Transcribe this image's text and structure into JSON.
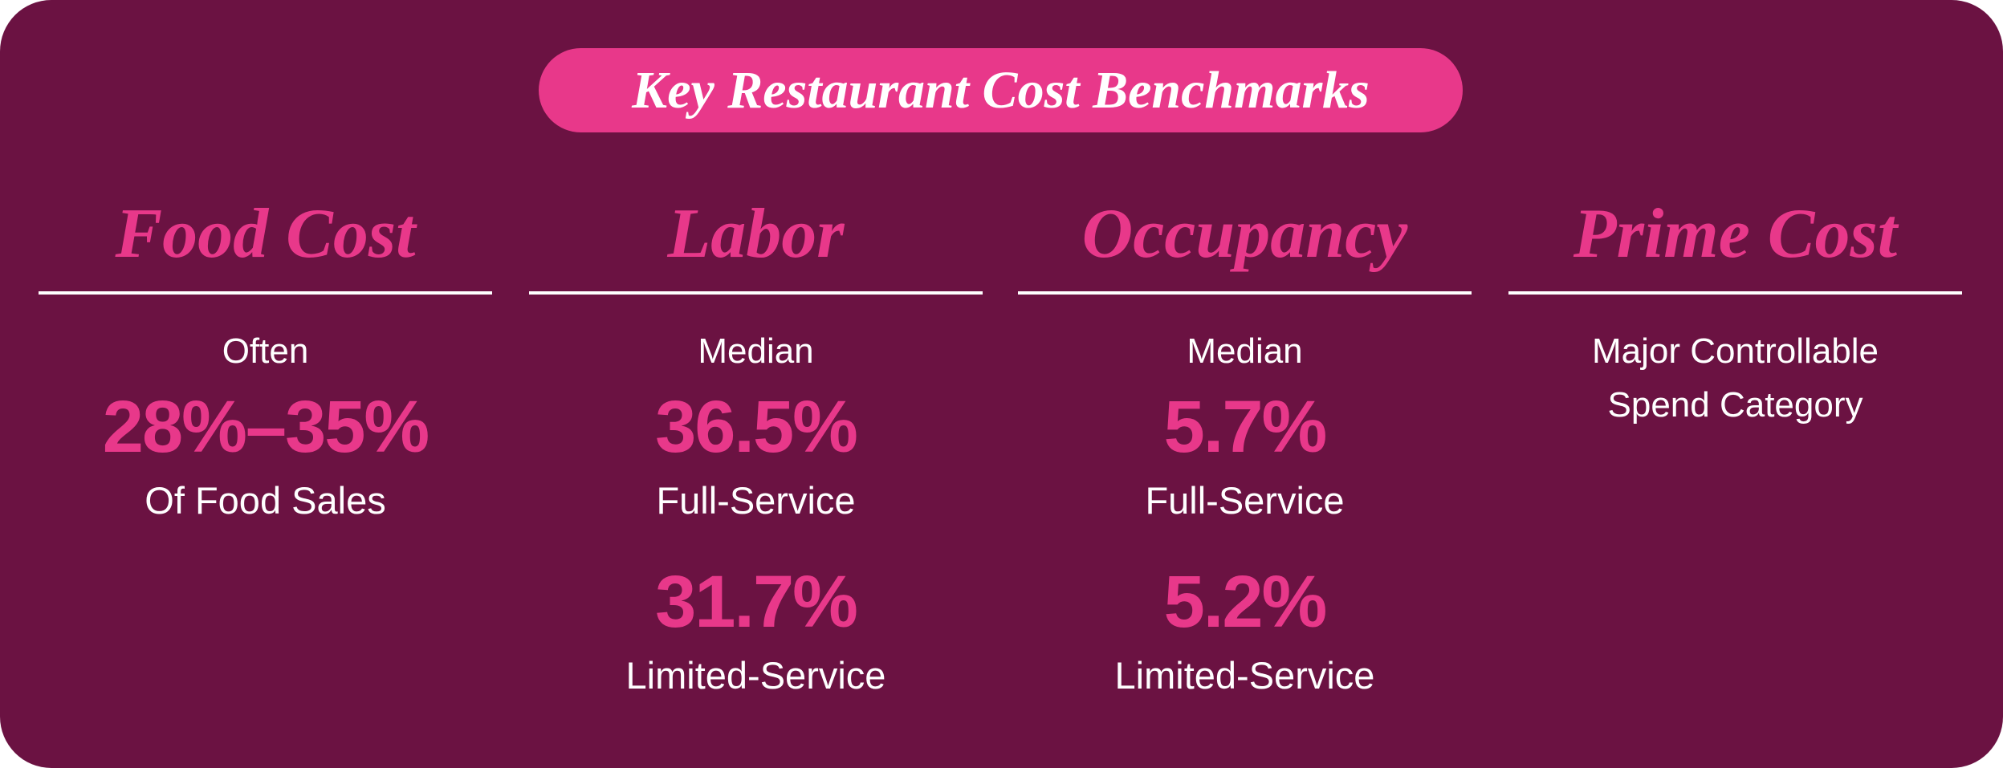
{
  "title": "Key Restaurant Cost Benchmarks",
  "columns": [
    {
      "heading": "Food Cost",
      "intro": "Often",
      "stats": [
        {
          "value": "28%–35%",
          "caption": "Of Food Sales"
        }
      ]
    },
    {
      "heading": "Labor",
      "intro": "Median",
      "stats": [
        {
          "value": "36.5%",
          "caption": "Full-Service"
        },
        {
          "value": "31.7%",
          "caption": "Limited-Service"
        }
      ]
    },
    {
      "heading": "Occupancy",
      "intro": "Median",
      "stats": [
        {
          "value": "5.7%",
          "caption": "Full-Service"
        },
        {
          "value": "5.2%",
          "caption": "Limited-Service"
        }
      ]
    },
    {
      "heading": "Prime Cost",
      "intro": "Major Controllable Spend Category",
      "stats": []
    }
  ]
}
